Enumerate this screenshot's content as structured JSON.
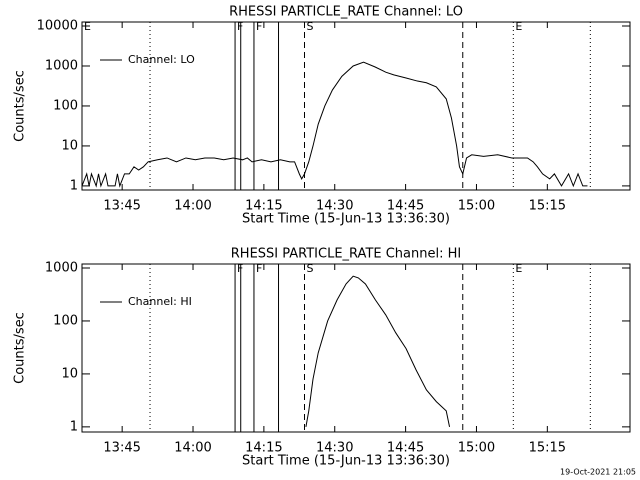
{
  "chart_data": [
    {
      "type": "line",
      "title": "RHESSI PARTICLE_RATE Channel: LO",
      "x_label": "Start Time (15-Jun-13 13:36:30)",
      "y_label": "Counts/sec",
      "x": [
        0,
        1,
        1.5,
        2,
        3,
        3.5,
        4,
        5,
        5.5,
        6,
        7,
        7.5,
        8,
        9,
        10,
        11,
        12,
        13,
        14,
        16,
        18,
        20,
        22,
        24,
        26,
        28,
        30,
        32,
        34,
        35,
        36,
        38,
        40,
        42,
        44,
        45,
        46,
        46.5,
        47.1,
        48,
        48.9,
        50,
        51.4,
        53,
        55,
        57.4,
        59.6,
        62,
        64.3,
        66,
        68.6,
        71,
        72.9,
        75,
        77.1,
        78.2,
        79.3,
        79.9,
        80.6,
        81.4,
        82.5,
        85,
        88,
        91,
        94.3,
        95.5,
        96.4,
        97.5,
        99,
        100,
        101.5,
        103,
        104,
        105,
        106,
        107
      ],
      "series": [
        {
          "name": "Channel: LO",
          "color": "#000000",
          "values": [
            1,
            2,
            1,
            2,
            1,
            2,
            1,
            2,
            1,
            1,
            1,
            2,
            1,
            2,
            2,
            3,
            2.5,
            3,
            4,
            4.5,
            5,
            4,
            5,
            4.5,
            5,
            5,
            4.5,
            5,
            4.5,
            5,
            4,
            4.5,
            4,
            4.5,
            4,
            4,
            2,
            1.5,
            2,
            4,
            10,
            35,
            100,
            250,
            550,
            1000,
            1250,
            950,
            700,
            600,
            500,
            420,
            380,
            300,
            150,
            50,
            10,
            3,
            2,
            5,
            6,
            5.5,
            6,
            5,
            5,
            4,
            3,
            2,
            1.5,
            2,
            1,
            2,
            1,
            2,
            1,
            1
          ]
        }
      ],
      "xlim": [
        0,
        116
      ],
      "xticks": [
        {
          "value": 8.5,
          "label": "13:45"
        },
        {
          "value": 23.5,
          "label": "14:00"
        },
        {
          "value": 38.5,
          "label": "14:15"
        },
        {
          "value": 53.5,
          "label": "14:30"
        },
        {
          "value": 68.5,
          "label": "14:45"
        },
        {
          "value": 83.5,
          "label": "15:00"
        },
        {
          "value": 98.5,
          "label": "15:15"
        }
      ],
      "ylim": [
        0.79,
        12600
      ],
      "yticks": [
        1,
        10,
        100,
        1000,
        10000
      ],
      "log_y": true,
      "legend": "upper left",
      "annotations": [
        {
          "x": 0,
          "label": "E",
          "style": "none"
        },
        {
          "x": 14.4,
          "style": "dotted"
        },
        {
          "x": 32.4,
          "label": "F",
          "style": "solid"
        },
        {
          "x": 33.6,
          "style": "solid"
        },
        {
          "x": 36.4,
          "label": "F",
          "style": "solid"
        },
        {
          "x": 41.6,
          "style": "solid"
        },
        {
          "x": 47.1,
          "label": "S",
          "style": "dashed"
        },
        {
          "x": 80.6,
          "style": "dashed"
        },
        {
          "x": 91.3,
          "label": "E",
          "style": "dotted"
        },
        {
          "x": 107.6,
          "style": "dotted"
        }
      ]
    },
    {
      "type": "line",
      "title": "RHESSI PARTICLE_RATE Channel: HI",
      "x_label": "Start Time (15-Jun-13 13:36:30)",
      "y_label": "Counts/sec",
      "x": [
        47.4,
        48,
        48.9,
        50,
        52,
        54,
        55.9,
        57.4,
        58.5,
        60,
        62.1,
        64.3,
        66.4,
        68.6,
        70.7,
        72.9,
        75,
        77.1,
        77.8
      ],
      "series": [
        {
          "name": "Channel: HI",
          "color": "#000000",
          "values": [
            1,
            2,
            8,
            25,
            100,
            250,
            500,
            700,
            650,
            500,
            250,
            130,
            60,
            30,
            12,
            5,
            3,
            2,
            1
          ]
        }
      ],
      "xlim": [
        0,
        116
      ],
      "xticks": [
        {
          "value": 8.5,
          "label": "13:45"
        },
        {
          "value": 23.5,
          "label": "14:00"
        },
        {
          "value": 38.5,
          "label": "14:15"
        },
        {
          "value": 53.5,
          "label": "14:30"
        },
        {
          "value": 68.5,
          "label": "14:45"
        },
        {
          "value": 83.5,
          "label": "15:00"
        },
        {
          "value": 98.5,
          "label": "15:15"
        }
      ],
      "ylim": [
        0.8,
        1190
      ],
      "yticks": [
        1,
        10,
        100,
        1000
      ],
      "log_y": true,
      "legend": "upper left",
      "annotations": [
        {
          "x": 14.4,
          "style": "dotted"
        },
        {
          "x": 32.4,
          "label": "F",
          "style": "solid"
        },
        {
          "x": 33.6,
          "style": "solid"
        },
        {
          "x": 36.4,
          "label": "F",
          "style": "solid"
        },
        {
          "x": 41.6,
          "style": "solid"
        },
        {
          "x": 47.1,
          "label": "S",
          "style": "dashed"
        },
        {
          "x": 80.6,
          "style": "dashed"
        },
        {
          "x": 91.3,
          "label": "E",
          "style": "dotted"
        },
        {
          "x": 107.6,
          "style": "dotted"
        }
      ]
    }
  ],
  "footer": "19-Oct-2021 21:05"
}
